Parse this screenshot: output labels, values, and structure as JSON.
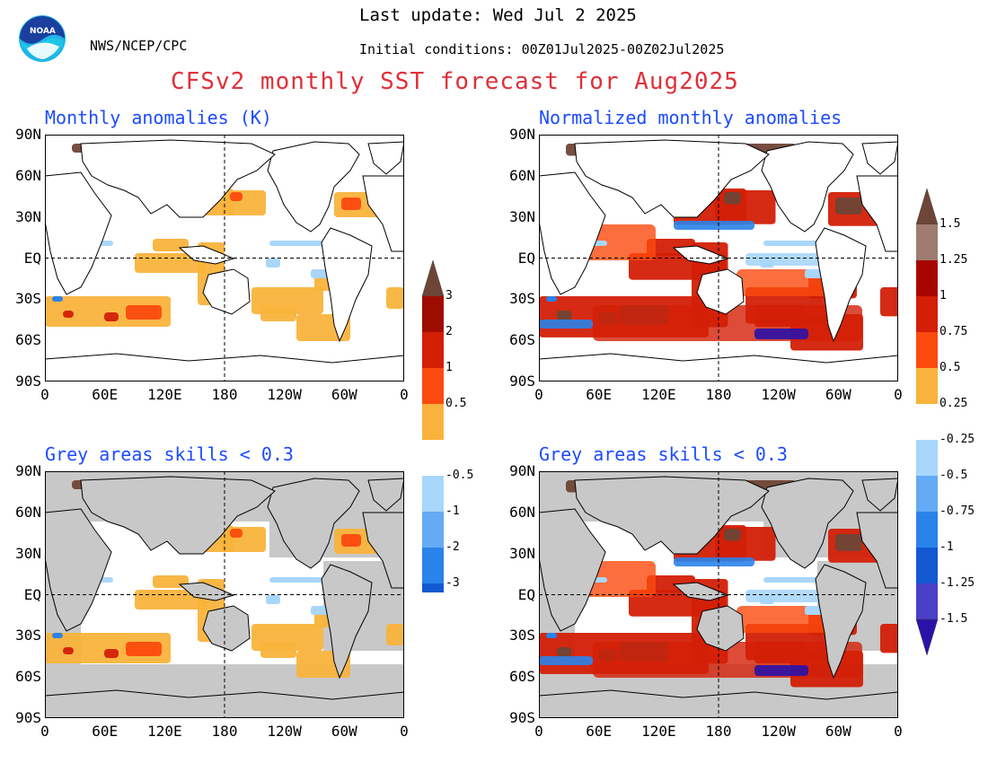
{
  "header": {
    "org": "NWS/NCEP/CPC",
    "last_update": "Last update: Wed Jul 2 2025",
    "initial_conditions": "Initial conditions: 00Z01Jul2025-00Z02Jul2025",
    "title": "CFSv2 monthly SST forecast for Aug2025",
    "logo_text": "NOAA"
  },
  "panels": {
    "top_left_title": "Monthly anomalies (K)",
    "top_right_title": "Normalized monthly anomalies",
    "bottom_left_title": "Grey areas skills < 0.3",
    "bottom_right_title": "Grey areas skills < 0.3"
  },
  "axes": {
    "lat_labels": [
      "90N",
      "60N",
      "30N",
      "EQ",
      "30S",
      "60S",
      "90S"
    ],
    "lon_labels": [
      "0",
      "60E",
      "120E",
      "180",
      "120W",
      "60W",
      "0"
    ]
  },
  "colorbars": {
    "anomaly_K": {
      "upper_labels": [
        "3",
        "2",
        "1",
        "0.5"
      ],
      "lower_labels": [
        "-0.5",
        "-1",
        "-2",
        "-3"
      ],
      "upper_colors": [
        "#f9b33c",
        "#fc4a0e",
        "#d31f06",
        "#9e0c00",
        "#6e4536"
      ],
      "lower_colors": [
        "#a9d6fb",
        "#64aaf5",
        "#2a83ea",
        "#1258d3",
        "#2a12a8"
      ]
    },
    "normalized": {
      "upper_labels": [
        "1.5",
        "1.25",
        "1",
        "0.75",
        "0.5",
        "0.25"
      ],
      "lower_labels": [
        "-0.25",
        "-0.5",
        "-0.75",
        "-1",
        "-1.25",
        "-1.5"
      ],
      "upper_colors": [
        "#f9b33c",
        "#fc4a0e",
        "#d31f06",
        "#a80500",
        "#9e7c70",
        "#6e4536"
      ],
      "lower_colors": [
        "#a9d6fb",
        "#64aaf5",
        "#2a83ea",
        "#1258d3",
        "#4a3fc8",
        "#2a12a8"
      ]
    }
  },
  "colors": {
    "title_red": "#e0303a",
    "panel_title_blue": "#1c4bff",
    "land_grey": "#c8c8c8",
    "warm_1": "#f9b33c",
    "warm_2": "#fc4a0e",
    "warm_3": "#d31f06",
    "warm_4": "#6e4536",
    "cool_1": "#a9d6fb",
    "cool_2": "#2a83ea",
    "cool_3": "#2a12a8"
  }
}
